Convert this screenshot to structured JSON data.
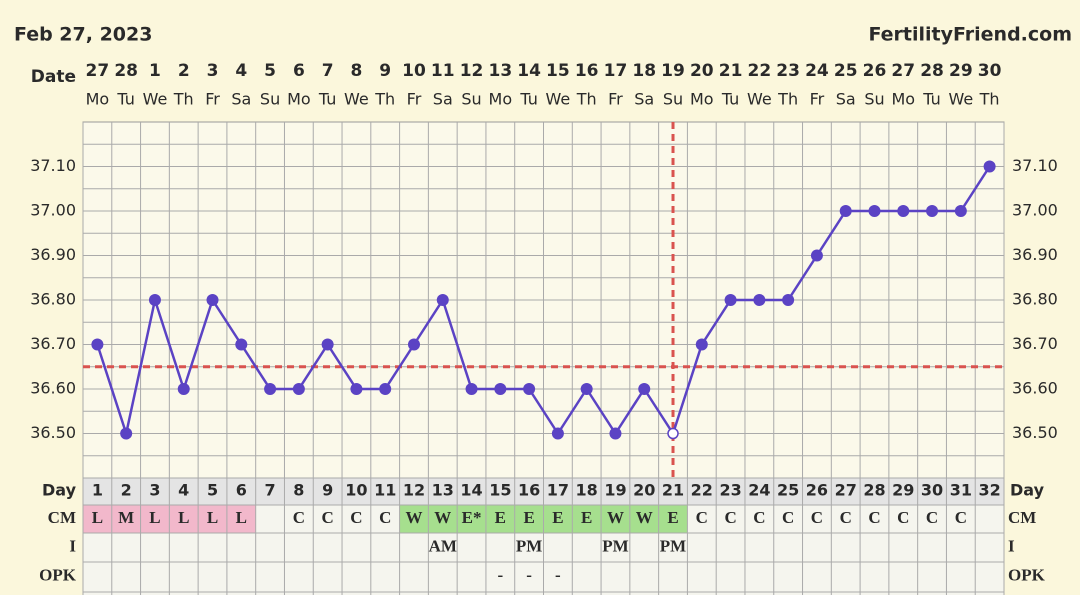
{
  "chart_data": {
    "type": "line",
    "title": "Feb 27, 2023",
    "brand": "FertilityFriend.com",
    "date_label": "Date",
    "dates": [
      27,
      28,
      1,
      2,
      3,
      4,
      5,
      6,
      7,
      8,
      9,
      10,
      11,
      12,
      13,
      14,
      15,
      16,
      17,
      18,
      19,
      20,
      21,
      22,
      23,
      24,
      25,
      26,
      27,
      28,
      29,
      30
    ],
    "weekdays": [
      "Mo",
      "Tu",
      "We",
      "Th",
      "Fr",
      "Sa",
      "Su",
      "Mo",
      "Tu",
      "We",
      "Th",
      "Fr",
      "Sa",
      "Su",
      "Mo",
      "Tu",
      "We",
      "Th",
      "Fr",
      "Sa",
      "Su",
      "Mo",
      "Tu",
      "We",
      "Th",
      "Fr",
      "Sa",
      "Su",
      "Mo",
      "Tu",
      "We",
      "Th"
    ],
    "day_label": "Day",
    "days": [
      1,
      2,
      3,
      4,
      5,
      6,
      7,
      8,
      9,
      10,
      11,
      12,
      13,
      14,
      15,
      16,
      17,
      18,
      19,
      20,
      21,
      22,
      23,
      24,
      25,
      26,
      27,
      28,
      29,
      30,
      31,
      32
    ],
    "values": [
      36.7,
      36.5,
      36.8,
      36.6,
      36.8,
      36.7,
      36.6,
      36.6,
      36.7,
      36.6,
      36.6,
      36.7,
      36.8,
      36.6,
      36.6,
      36.6,
      36.5,
      36.6,
      36.5,
      36.6,
      36.5,
      36.7,
      36.8,
      36.8,
      36.8,
      36.9,
      37.0,
      37.0,
      37.0,
      37.0,
      37.0,
      37.1
    ],
    "color": "#5b43c4",
    "open_marker_days": [
      21
    ],
    "coverline": 36.65,
    "ovulation_day": 21,
    "marker_line_color": "#d9534f",
    "ylim": [
      36.4,
      37.2
    ],
    "yticks": [
      {
        "value": 36.5,
        "label": "36.50"
      },
      {
        "value": 36.6,
        "label": "36.60"
      },
      {
        "value": 36.7,
        "label": "36.70"
      },
      {
        "value": 36.8,
        "label": "36.80"
      },
      {
        "value": 36.9,
        "label": "36.90"
      },
      {
        "value": 37.0,
        "label": "37.00"
      },
      {
        "value": 37.1,
        "label": "37.10"
      }
    ],
    "grid": true,
    "rows": [
      {
        "label": "CM",
        "cells": [
          "L",
          "M",
          "L",
          "L",
          "L",
          "L",
          null,
          "C",
          "C",
          "C",
          "C",
          "W",
          "W",
          "E*",
          "E",
          "E",
          "E",
          "E",
          "W",
          "W",
          "E",
          "C",
          "C",
          "C",
          "C",
          "C",
          "C",
          "C",
          "C",
          "C",
          "C",
          null
        ],
        "highlight": {
          "L": "#f2b8cb",
          "M": "#f2b8cb",
          "W": "#a6df8e",
          "E": "#a6df8e",
          "E*": "#a6df8e"
        }
      },
      {
        "label": "I",
        "cells": [
          null,
          null,
          null,
          null,
          null,
          null,
          null,
          null,
          null,
          null,
          null,
          null,
          "AM",
          null,
          null,
          "PM",
          null,
          null,
          "PM",
          null,
          "PM",
          null,
          null,
          null,
          null,
          null,
          null,
          null,
          null,
          null,
          null,
          null
        ]
      },
      {
        "label": "OPK",
        "cells": [
          null,
          null,
          null,
          null,
          null,
          null,
          null,
          null,
          null,
          null,
          null,
          null,
          null,
          null,
          "-",
          "-",
          "-",
          null,
          null,
          null,
          null,
          null,
          null,
          null,
          null,
          null,
          null,
          null,
          null,
          null,
          null,
          null
        ]
      }
    ]
  }
}
